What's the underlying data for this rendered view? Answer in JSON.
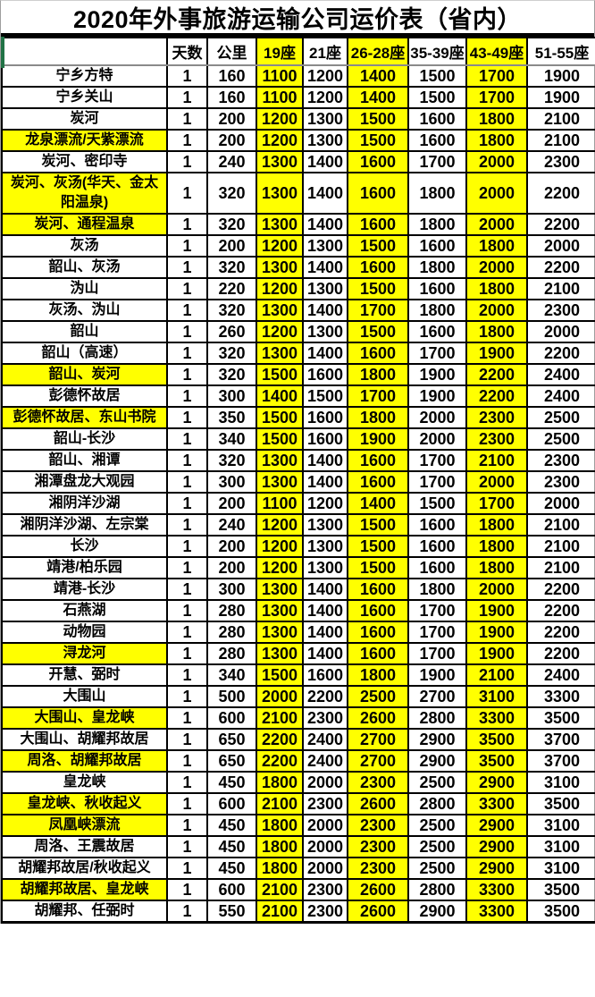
{
  "title": "2020年外事旅游运输公司运价表（省内）",
  "colors": {
    "highlight_yellow": "#ffff00",
    "grid_border": "#000000",
    "outer_border": "#9e9e9e",
    "accent_green": "#217346"
  },
  "table": {
    "columns": [
      "",
      "天数",
      "公里",
      "19座",
      "21座",
      "26-28座",
      "35-39座",
      "43-49座",
      "51-55座"
    ],
    "highlighted_columns": [
      "19座",
      "26-28座",
      "43-49座"
    ],
    "rows": [
      {
        "name": "宁乡方特",
        "highlight": false,
        "values": [
          1,
          160,
          1100,
          1200,
          1400,
          1500,
          1700,
          1900
        ]
      },
      {
        "name": "宁乡关山",
        "highlight": false,
        "values": [
          1,
          160,
          1100,
          1200,
          1400,
          1500,
          1700,
          1900
        ]
      },
      {
        "name": "炭河",
        "highlight": false,
        "values": [
          1,
          200,
          1200,
          1300,
          1500,
          1600,
          1800,
          2100
        ]
      },
      {
        "name": "龙泉漂流/天紫漂流",
        "highlight": true,
        "values": [
          1,
          200,
          1200,
          1300,
          1500,
          1600,
          1800,
          2100
        ]
      },
      {
        "name": "炭河、密印寺",
        "highlight": false,
        "values": [
          1,
          240,
          1300,
          1400,
          1600,
          1700,
          2000,
          2300
        ]
      },
      {
        "name": "炭河、灰汤(华天、金太阳温泉)",
        "highlight": true,
        "values": [
          1,
          320,
          1300,
          1400,
          1600,
          1800,
          2000,
          2200
        ]
      },
      {
        "name": "炭河、通程温泉",
        "highlight": true,
        "values": [
          1,
          320,
          1300,
          1400,
          1600,
          1800,
          2000,
          2200
        ]
      },
      {
        "name": "灰汤",
        "highlight": false,
        "values": [
          1,
          200,
          1200,
          1300,
          1500,
          1600,
          1800,
          2000
        ]
      },
      {
        "name": "韶山、灰汤",
        "highlight": false,
        "values": [
          1,
          320,
          1300,
          1400,
          1600,
          1800,
          2000,
          2200
        ]
      },
      {
        "name": "沩山",
        "highlight": false,
        "values": [
          1,
          220,
          1200,
          1300,
          1500,
          1600,
          1800,
          2100
        ]
      },
      {
        "name": "灰汤、沩山",
        "highlight": false,
        "values": [
          1,
          320,
          1300,
          1400,
          1700,
          1800,
          2000,
          2300
        ]
      },
      {
        "name": "韶山",
        "highlight": false,
        "values": [
          1,
          260,
          1200,
          1300,
          1500,
          1600,
          1800,
          2000
        ]
      },
      {
        "name": "韶山（高速）",
        "highlight": false,
        "values": [
          1,
          320,
          1300,
          1400,
          1600,
          1700,
          1900,
          2200
        ]
      },
      {
        "name": "韶山、炭河",
        "highlight": true,
        "values": [
          1,
          320,
          1500,
          1600,
          1800,
          1900,
          2200,
          2400
        ]
      },
      {
        "name": "彭德怀故居",
        "highlight": false,
        "values": [
          1,
          300,
          1400,
          1500,
          1700,
          1900,
          2200,
          2400
        ]
      },
      {
        "name": "彭德怀故居、东山书院",
        "highlight": true,
        "values": [
          1,
          350,
          1500,
          1600,
          1800,
          2000,
          2300,
          2500
        ]
      },
      {
        "name": "韶山-长沙",
        "highlight": false,
        "values": [
          1,
          340,
          1500,
          1600,
          1900,
          2000,
          2300,
          2500
        ]
      },
      {
        "name": "韶山、湘谭",
        "highlight": false,
        "values": [
          1,
          320,
          1300,
          1400,
          1600,
          1700,
          2100,
          2300
        ]
      },
      {
        "name": "湘潭盘龙大观园",
        "highlight": false,
        "values": [
          1,
          300,
          1300,
          1400,
          1600,
          1700,
          2000,
          2300
        ]
      },
      {
        "name": "湘阴洋沙湖",
        "highlight": false,
        "values": [
          1,
          200,
          1100,
          1200,
          1400,
          1500,
          1700,
          2000
        ]
      },
      {
        "name": "湘阴洋沙湖、左宗棠",
        "highlight": false,
        "values": [
          1,
          240,
          1200,
          1300,
          1500,
          1600,
          1800,
          2100
        ]
      },
      {
        "name": "长沙",
        "highlight": false,
        "values": [
          1,
          200,
          1200,
          1300,
          1500,
          1600,
          1800,
          2100
        ]
      },
      {
        "name": "靖港/柏乐园",
        "highlight": false,
        "values": [
          1,
          200,
          1200,
          1300,
          1500,
          1600,
          1800,
          2100
        ]
      },
      {
        "name": "靖港-长沙",
        "highlight": false,
        "values": [
          1,
          300,
          1300,
          1400,
          1600,
          1800,
          2000,
          2200
        ]
      },
      {
        "name": "石燕湖",
        "highlight": false,
        "values": [
          1,
          280,
          1300,
          1400,
          1600,
          1700,
          1900,
          2200
        ]
      },
      {
        "name": "动物园",
        "highlight": false,
        "values": [
          1,
          280,
          1300,
          1400,
          1600,
          1700,
          1900,
          2200
        ]
      },
      {
        "name": "浔龙河",
        "highlight": true,
        "values": [
          1,
          280,
          1300,
          1400,
          1600,
          1700,
          1900,
          2200
        ]
      },
      {
        "name": "开慧、弼时",
        "highlight": false,
        "values": [
          1,
          340,
          1500,
          1600,
          1800,
          1900,
          2100,
          2400
        ]
      },
      {
        "name": "大围山",
        "highlight": false,
        "values": [
          1,
          500,
          2000,
          2200,
          2500,
          2700,
          3100,
          3300
        ]
      },
      {
        "name": "大围山、皇龙峡",
        "highlight": true,
        "values": [
          1,
          600,
          2100,
          2300,
          2600,
          2800,
          3300,
          3500
        ]
      },
      {
        "name": "大围山、胡耀邦故居",
        "highlight": false,
        "values": [
          1,
          650,
          2200,
          2400,
          2700,
          2900,
          3500,
          3700
        ]
      },
      {
        "name": "周洛、胡耀邦故居",
        "highlight": true,
        "values": [
          1,
          650,
          2200,
          2400,
          2700,
          2900,
          3500,
          3700
        ]
      },
      {
        "name": "皇龙峡",
        "highlight": false,
        "values": [
          1,
          450,
          1800,
          2000,
          2300,
          2500,
          2900,
          3100
        ]
      },
      {
        "name": "皇龙峡、秋收起义",
        "highlight": true,
        "values": [
          1,
          600,
          2100,
          2300,
          2600,
          2800,
          3300,
          3500
        ]
      },
      {
        "name": "凤凰峡漂流",
        "highlight": true,
        "values": [
          1,
          450,
          1800,
          2000,
          2300,
          2500,
          2900,
          3100
        ]
      },
      {
        "name": "周洛、王震故居",
        "highlight": false,
        "values": [
          1,
          450,
          1800,
          2000,
          2300,
          2500,
          2900,
          3100
        ]
      },
      {
        "name": "胡耀邦故居/秋收起义",
        "highlight": false,
        "values": [
          1,
          450,
          1800,
          2000,
          2300,
          2500,
          2900,
          3100
        ]
      },
      {
        "name": "胡耀邦故居、皇龙峡",
        "highlight": true,
        "values": [
          1,
          600,
          2100,
          2300,
          2600,
          2800,
          3300,
          3500
        ]
      },
      {
        "name": "胡耀邦、任弼时",
        "highlight": false,
        "values": [
          1,
          550,
          2100,
          2300,
          2600,
          2900,
          3300,
          3500
        ]
      }
    ]
  }
}
